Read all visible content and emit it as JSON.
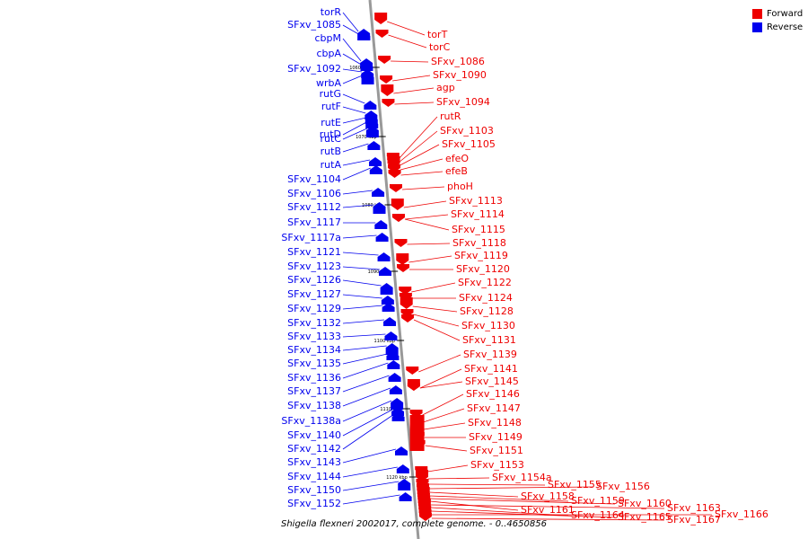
{
  "colors": {
    "forward": "#ee0000",
    "reverse": "#0000ee",
    "backbone": "#999999",
    "text": "#000000"
  },
  "legend": {
    "forward": "Forward",
    "reverse": "Reverse"
  },
  "caption": "Shigella flexneri 2002017, complete genome. - 0..4650856",
  "ticks": [
    "1060 kbp",
    "1070 kbp",
    "1080 kbp",
    "1090 kbp",
    "1100 kbp",
    "1110 kbp",
    "1120 kbp"
  ],
  "reverse_genes": [
    "torR",
    "SFxv_1085",
    "cbpM",
    "cbpA",
    "SFxv_1092",
    "wrbA",
    "rutG",
    "rutF",
    "rutE",
    "rutD",
    "rutC",
    "rutB",
    "rutA",
    "SFxv_1104",
    "SFxv_1106",
    "SFxv_1112",
    "SFxv_1117",
    "SFxv_1117a",
    "SFxv_1121",
    "SFxv_1123",
    "SFxv_1126",
    "SFxv_1127",
    "SFxv_1129",
    "SFxv_1132",
    "SFxv_1133",
    "SFxv_1134",
    "SFxv_1135",
    "SFxv_1136",
    "SFxv_1137",
    "SFxv_1138",
    "SFxv_1138a",
    "SFxv_1140",
    "SFxv_1142",
    "SFxv_1143",
    "SFxv_1144",
    "SFxv_1150",
    "SFxv_1152"
  ],
  "forward_genes": [
    "torT",
    "torC",
    "SFxv_1086",
    "SFxv_1090",
    "agp",
    "SFxv_1094",
    "rutR",
    "SFxv_1103",
    "SFxv_1105",
    "efeO",
    "efeB",
    "phoH",
    "SFxv_1113",
    "SFxv_1114",
    "SFxv_1115",
    "SFxv_1118",
    "SFxv_1119",
    "SFxv_1120",
    "SFxv_1122",
    "SFxv_1124",
    "SFxv_1128",
    "SFxv_1130",
    "SFxv_1131",
    "SFxv_1139",
    "SFxv_1141",
    "SFxv_1145",
    "SFxv_1146",
    "SFxv_1147",
    "SFxv_1148",
    "SFxv_1149",
    "SFxv_1151",
    "SFxv_1153",
    "SFxv_1154a",
    "SFxv_1155",
    "SFxv_1156",
    "SFxv_1158",
    "SFxv_1159",
    "SFxv_1160",
    "SFxv_1161",
    "SFxv_1163",
    "SFxv_1164",
    "SFxv_1165",
    "SFxv_1166",
    "SFxv_1167"
  ]
}
